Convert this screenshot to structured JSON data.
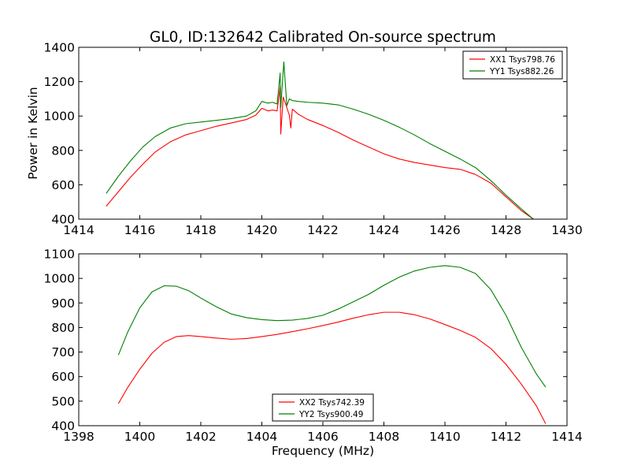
{
  "chart_data": [
    {
      "type": "line",
      "title": "GL0, ID:132642 Calibrated On-source spectrum",
      "xlabel": "",
      "ylabel": "Power in Kelvin",
      "xlim": [
        1414,
        1430
      ],
      "ylim": [
        400,
        1400
      ],
      "xticks": [
        "1414",
        "1416",
        "1418",
        "1420",
        "1422",
        "1424",
        "1426",
        "1428",
        "1430"
      ],
      "yticks": [
        "400",
        "600",
        "800",
        "1000",
        "1200",
        "1400"
      ],
      "legend": "top-right",
      "grid": false,
      "series": [
        {
          "name": "XX1 Tsys798.76",
          "color": "#ff0000",
          "x": [
            1414.9,
            1415.3,
            1415.7,
            1416.1,
            1416.5,
            1417.0,
            1417.5,
            1418.0,
            1418.5,
            1419.0,
            1419.5,
            1419.8,
            1420.0,
            1420.2,
            1420.35,
            1420.5,
            1420.6,
            1420.62,
            1420.7,
            1420.8,
            1420.9,
            1420.95,
            1421.0,
            1421.2,
            1421.5,
            1422.0,
            1422.5,
            1423.0,
            1423.5,
            1424.0,
            1424.5,
            1425.0,
            1425.5,
            1426.0,
            1426.5,
            1427.0,
            1427.5,
            1428.0,
            1428.5,
            1428.9
          ],
          "y": [
            475,
            560,
            645,
            720,
            790,
            850,
            890,
            915,
            940,
            960,
            980,
            1005,
            1045,
            1030,
            1035,
            1030,
            1170,
            895,
            1110,
            1060,
            1005,
            930,
            1040,
            1010,
            980,
            945,
            905,
            860,
            820,
            780,
            750,
            730,
            715,
            700,
            690,
            660,
            610,
            530,
            450,
            400
          ]
        },
        {
          "name": "YY1 Tsys882.26",
          "color": "#008000",
          "x": [
            1414.9,
            1415.3,
            1415.7,
            1416.1,
            1416.5,
            1417.0,
            1417.5,
            1418.0,
            1418.5,
            1419.0,
            1419.5,
            1419.8,
            1420.0,
            1420.2,
            1420.35,
            1420.5,
            1420.6,
            1420.62,
            1420.72,
            1420.82,
            1420.9,
            1421.0,
            1421.2,
            1421.5,
            1422.0,
            1422.5,
            1423.0,
            1423.5,
            1424.0,
            1424.5,
            1425.0,
            1425.5,
            1426.0,
            1426.5,
            1427.0,
            1427.5,
            1428.0,
            1428.5,
            1428.9
          ],
          "y": [
            550,
            650,
            740,
            820,
            880,
            930,
            955,
            965,
            975,
            985,
            1000,
            1030,
            1085,
            1075,
            1080,
            1070,
            1250,
            1050,
            1315,
            1060,
            1100,
            1090,
            1085,
            1080,
            1075,
            1065,
            1040,
            1010,
            975,
            935,
            890,
            840,
            795,
            750,
            700,
            625,
            540,
            460,
            400
          ]
        }
      ]
    },
    {
      "type": "line",
      "title": "",
      "xlabel": "Frequency (MHz)",
      "ylabel": "",
      "xlim": [
        1398,
        1414
      ],
      "ylim": [
        400,
        1100
      ],
      "xticks": [
        "1398",
        "1400",
        "1402",
        "1404",
        "1406",
        "1408",
        "1410",
        "1412",
        "1414"
      ],
      "yticks": [
        "400",
        "500",
        "600",
        "700",
        "800",
        "900",
        "1000",
        "1100"
      ],
      "legend": "lower-center",
      "grid": false,
      "series": [
        {
          "name": "XX2 Tsys742.39",
          "color": "#ff0000",
          "x": [
            1399.3,
            1399.6,
            1400.0,
            1400.4,
            1400.8,
            1401.2,
            1401.6,
            1402.0,
            1402.5,
            1403.0,
            1403.5,
            1404.0,
            1404.5,
            1405.0,
            1405.5,
            1406.0,
            1406.5,
            1407.0,
            1407.5,
            1408.0,
            1408.5,
            1409.0,
            1409.5,
            1410.0,
            1410.5,
            1411.0,
            1411.5,
            1412.0,
            1412.5,
            1413.0,
            1413.3
          ],
          "y": [
            490,
            555,
            630,
            695,
            740,
            763,
            767,
            763,
            757,
            752,
            755,
            763,
            772,
            783,
            795,
            808,
            822,
            838,
            852,
            862,
            862,
            852,
            835,
            812,
            788,
            760,
            715,
            650,
            570,
            480,
            408
          ]
        },
        {
          "name": "YY2 Tsys900.49",
          "color": "#008000",
          "x": [
            1399.3,
            1399.6,
            1400.0,
            1400.4,
            1400.8,
            1401.2,
            1401.6,
            1402.0,
            1402.5,
            1403.0,
            1403.5,
            1404.0,
            1404.5,
            1405.0,
            1405.5,
            1406.0,
            1406.5,
            1407.0,
            1407.5,
            1408.0,
            1408.5,
            1409.0,
            1409.5,
            1410.0,
            1410.5,
            1411.0,
            1411.5,
            1412.0,
            1412.5,
            1413.0,
            1413.3
          ],
          "y": [
            688,
            780,
            880,
            945,
            970,
            968,
            950,
            920,
            885,
            855,
            840,
            832,
            828,
            830,
            837,
            850,
            875,
            905,
            935,
            972,
            1005,
            1030,
            1045,
            1052,
            1045,
            1020,
            955,
            850,
            720,
            610,
            557
          ]
        }
      ]
    }
  ]
}
